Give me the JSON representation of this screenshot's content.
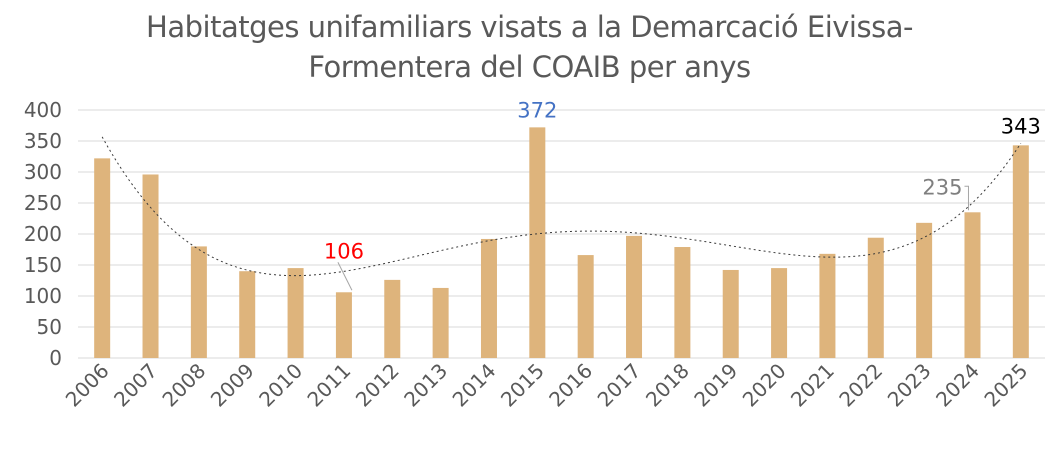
{
  "chart_data": {
    "type": "bar",
    "title_lines": [
      "Habitatges unifamiliars visats a la Demarcació Eivissa-",
      "Formentera del COAIB per anys"
    ],
    "xlabel": "",
    "ylabel": "",
    "categories": [
      "2006",
      "2007",
      "2008",
      "2009",
      "2010",
      "2011",
      "2012",
      "2013",
      "2014",
      "2015",
      "2016",
      "2017",
      "2018",
      "2019",
      "2020",
      "2021",
      "2022",
      "2023",
      "2024",
      "2025"
    ],
    "values": [
      322,
      296,
      180,
      140,
      145,
      106,
      126,
      113,
      192,
      372,
      166,
      197,
      179,
      142,
      145,
      168,
      194,
      218,
      235,
      343
    ],
    "ylim": [
      0,
      400
    ],
    "yticks": [
      "0",
      "50",
      "100",
      "150",
      "200",
      "250",
      "300",
      "350",
      "400"
    ],
    "grid": true,
    "bar_color": "#deb47c",
    "trendline": {
      "type": "polynomial",
      "style": "dotted",
      "color": "#3a3a3a"
    },
    "data_labels": [
      {
        "category": "2011",
        "text": "106",
        "color": "#ff0000"
      },
      {
        "category": "2015",
        "text": "372",
        "color": "#4472c4"
      },
      {
        "category": "2024",
        "text": "235",
        "color": "#7f7f7f"
      },
      {
        "category": "2025",
        "text": "343",
        "color": "#000000"
      }
    ]
  }
}
